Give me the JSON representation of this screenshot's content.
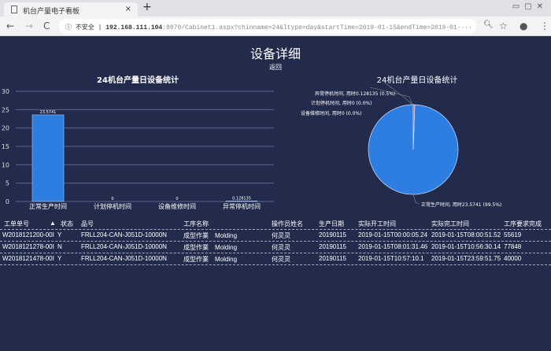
{
  "browser": {
    "tab_title": "机台产量电子看板",
    "security": "不安全",
    "url_host": "192.168.111.104",
    "url_rest": ":8070/Cabinet1.aspx?chinname=24&ltype=day&startTime=2019-01-15&endTime=2019-01-···"
  },
  "page": {
    "title": "设备详细",
    "back": "返回"
  },
  "chart_data": [
    {
      "type": "bar",
      "title": "24机台产量日设备统计",
      "categories": [
        "正常生产时间",
        "计划停机时间",
        "设备维修时间",
        "异常停机时间"
      ],
      "values": [
        23.5741,
        0,
        0,
        0.128135
      ],
      "data_labels": [
        "23.5741",
        "0",
        "0",
        "0.128135"
      ],
      "ylim": [
        0,
        30
      ],
      "yticks": [
        0,
        5,
        10,
        15,
        20,
        25,
        30
      ],
      "grid": true,
      "color": "#2e7de1"
    },
    {
      "type": "pie",
      "title": "24机台产量日设备统计",
      "slices": [
        {
          "name": "正常生产时间",
          "value": 23.5741,
          "label": "正常生产时间, 用时23.5741 (99.5%)",
          "color": "#2e7de1"
        },
        {
          "name": "计划停机时间",
          "value": 0,
          "label": "计划停机时间, 用时0 (0.0%)",
          "color": "#999999"
        },
        {
          "name": "设备维修时间",
          "value": 0,
          "label": "设备维修时间, 用时0 (0.0%)",
          "color": "#aaaaaa"
        },
        {
          "name": "异常停机时间",
          "value": 0.128135,
          "label": "异常停机时间, 用时0.128135 (0.5%)",
          "color": "#d9534f"
        }
      ]
    }
  ],
  "table": {
    "headers": [
      "工单单号",
      "状态",
      "品号",
      "工序名称",
      "操作员姓名",
      "生产日期",
      "实际开工时间",
      "实际完工时间",
      "工序要求完成"
    ],
    "rows": [
      [
        "W2018121200-00I",
        "Y",
        "FRLL204-CAN-J051D-10000N",
        "成型作業　Molding",
        "何灵灵",
        "20190115",
        "2019-01-15T00:00:05.24",
        "2019-01-15T08:00:51.52",
        "55619"
      ],
      [
        "W2018121278-00I",
        "N",
        "FRLL204-CAN-J051D-10000N",
        "成型作業　Molding",
        "何灵灵",
        "20190115",
        "2019-01-15T08:01:31.46",
        "2019-01-15T10:56:30.14",
        "77848"
      ],
      [
        "W2018121478-00I",
        "Y",
        "FRLL204-CAN-J051D-10000N",
        "成型作業　Molding",
        "何灵灵",
        "20190115",
        "2019-01-15T10:57:10.1",
        "2019-01-15T23:59:51.75",
        "40000"
      ]
    ]
  }
}
